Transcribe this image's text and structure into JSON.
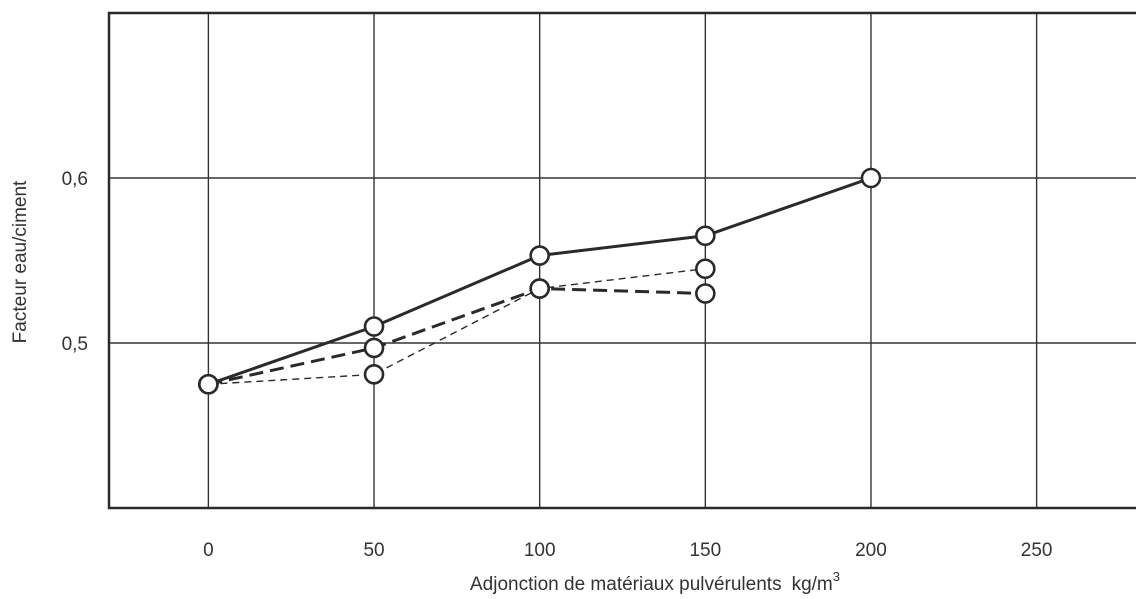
{
  "chart_data": {
    "type": "line",
    "title": "",
    "xlabel": "Adjonction de matériaux pulvérulents",
    "xlabel_unit": "kg/m",
    "xlabel_unit_exp": "3",
    "ylabel": "Facteur eau/ciment",
    "xlim": [
      -30,
      280
    ],
    "ylim": [
      0.4,
      0.7
    ],
    "x_ticks": [
      0,
      50,
      100,
      150,
      200,
      250
    ],
    "x_tick_labels": [
      "0",
      "50",
      "100",
      "150",
      "200",
      "250"
    ],
    "y_ticks": [
      0.5,
      0.6
    ],
    "y_tick_labels": [
      "0,5",
      "0,6"
    ],
    "grid": true,
    "legend": "none",
    "colors": {
      "line": "#2a2a2a",
      "grid": "#333333",
      "marker_fill": "#ffffff"
    },
    "series": [
      {
        "style": "solid",
        "x": [
          0,
          50,
          100,
          150,
          200
        ],
        "y": [
          0.475,
          0.51,
          0.553,
          0.565,
          0.6
        ]
      },
      {
        "style": "dashed-thick",
        "x": [
          0,
          50,
          100,
          150
        ],
        "y": [
          0.475,
          0.497,
          0.533,
          0.53
        ]
      },
      {
        "style": "dashed-thin",
        "x": [
          0,
          50,
          100,
          150
        ],
        "y": [
          0.475,
          0.481,
          0.533,
          0.545
        ]
      }
    ]
  }
}
